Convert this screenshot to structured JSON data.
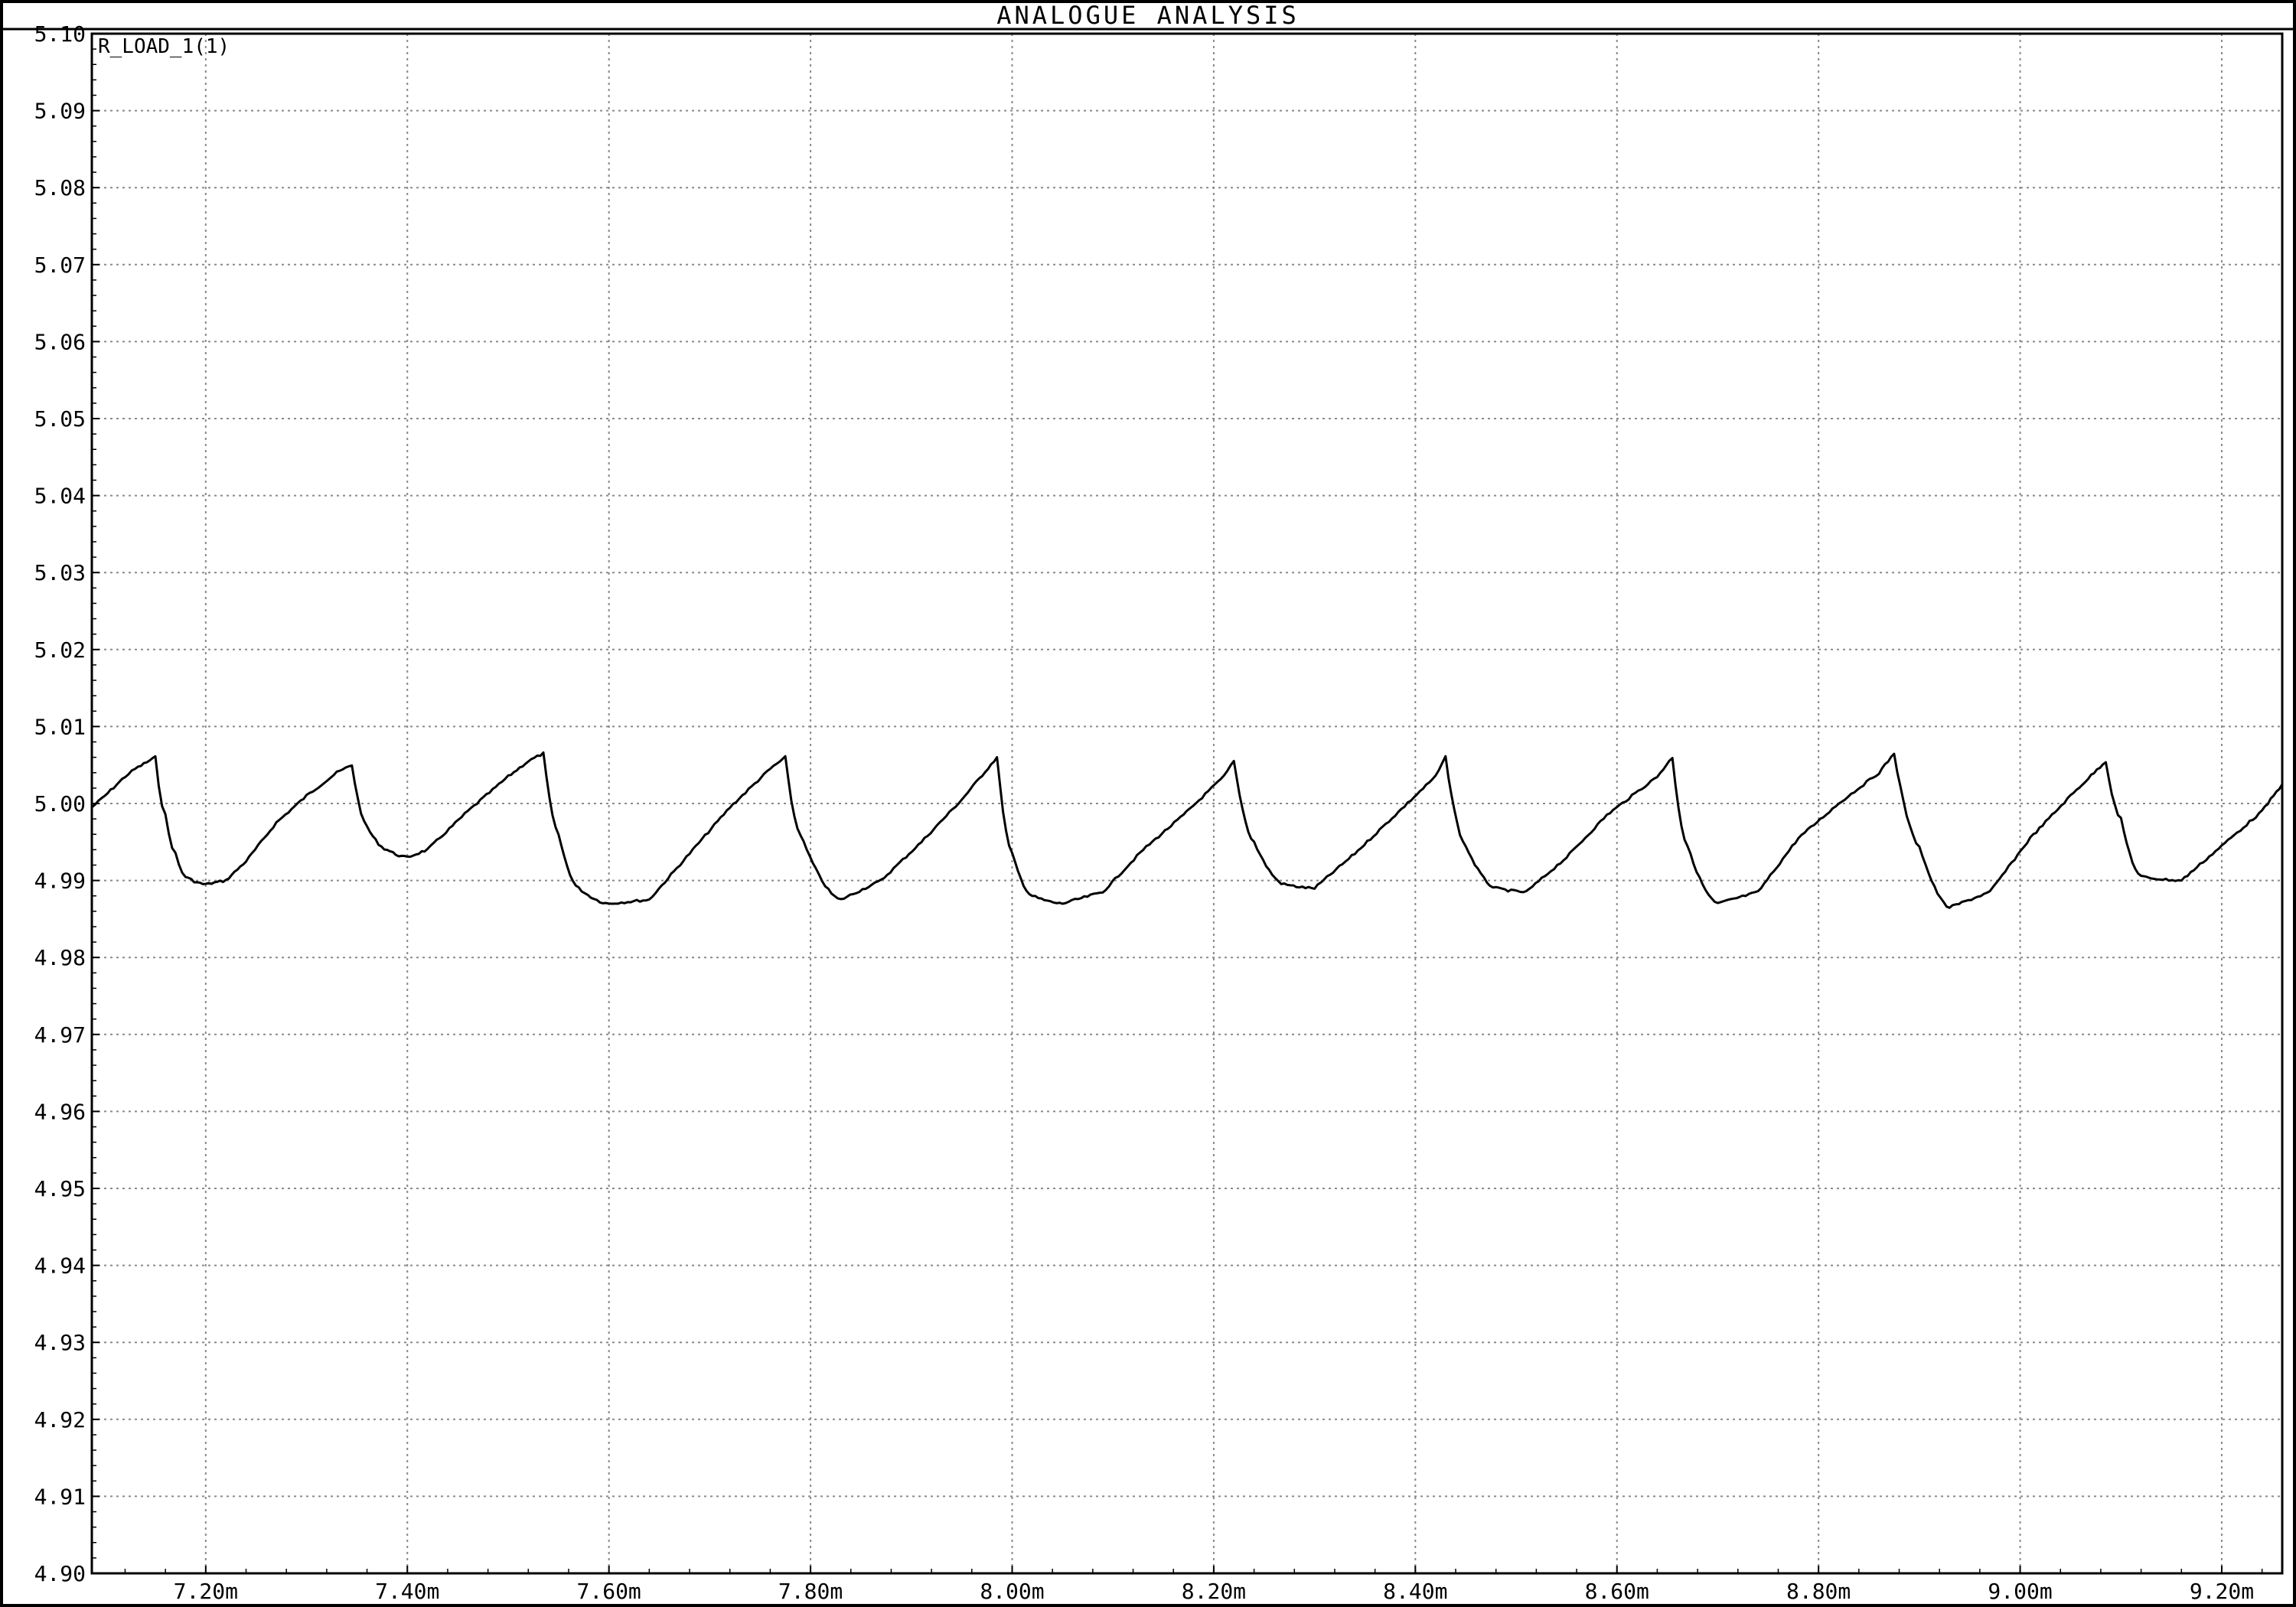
{
  "window": {
    "title": "ANALOGUE ANALYSIS"
  },
  "chart_data": {
    "type": "line",
    "title": "ANALOGUE ANALYSIS",
    "xlabel": "",
    "ylabel": "",
    "xlim": [
      7.087,
      9.26
    ],
    "ylim": [
      4.9,
      5.1
    ],
    "grid": true,
    "x_ticks": [
      7.2,
      7.4,
      7.6,
      7.8,
      8.0,
      8.2,
      8.4,
      8.6,
      8.8,
      9.0,
      9.2
    ],
    "x_tick_labels": [
      "7.20m",
      "7.40m",
      "7.60m",
      "7.80m",
      "8.00m",
      "8.20m",
      "8.40m",
      "8.60m",
      "8.80m",
      "9.00m",
      "9.20m"
    ],
    "y_ticks": [
      4.9,
      4.91,
      4.92,
      4.93,
      4.94,
      4.95,
      4.96,
      4.97,
      4.98,
      4.99,
      5.0,
      5.01,
      5.02,
      5.03,
      5.04,
      5.05,
      5.06,
      5.07,
      5.08,
      5.09,
      5.1
    ],
    "y_tick_labels": [
      "4.90",
      "4.91",
      "4.92",
      "4.93",
      "4.94",
      "4.95",
      "4.96",
      "4.97",
      "4.98",
      "4.99",
      "5.00",
      "5.01",
      "5.02",
      "5.03",
      "5.04",
      "5.05",
      "5.06",
      "5.07",
      "5.08",
      "5.09",
      "5.10"
    ],
    "series": [
      {
        "name": "R_LOAD_1(1)",
        "color": "#000000",
        "x": [
          7.087,
          7.1,
          7.12,
          7.13,
          7.15,
          7.16,
          7.17,
          7.18,
          7.2,
          7.22,
          7.24,
          7.27,
          7.3,
          7.33,
          7.345,
          7.36,
          7.38,
          7.4,
          7.42,
          7.46,
          7.5,
          7.52,
          7.535,
          7.55,
          7.57,
          7.6,
          7.64,
          7.68,
          7.72,
          7.76,
          7.775,
          7.79,
          7.83,
          7.87,
          7.91,
          7.95,
          7.985,
          8.0,
          8.02,
          8.05,
          8.09,
          8.13,
          8.17,
          8.21,
          8.22,
          8.24,
          8.27,
          8.3,
          8.34,
          8.38,
          8.42,
          8.43,
          8.45,
          8.48,
          8.51,
          8.55,
          8.59,
          8.64,
          8.655,
          8.67,
          8.7,
          8.74,
          8.78,
          8.82,
          8.86,
          8.875,
          8.9,
          8.93,
          8.97,
          9.01,
          9.05,
          9.085,
          9.1,
          9.12,
          9.16,
          9.2,
          9.24,
          9.26
        ],
        "values": [
          4.9995,
          5.001,
          5.0035,
          5.0045,
          5.006,
          4.9985,
          4.9935,
          4.9905,
          4.9895,
          4.99,
          4.9925,
          4.9975,
          5.001,
          5.004,
          5.005,
          4.997,
          4.994,
          4.993,
          4.994,
          4.999,
          5.0035,
          5.0055,
          5.0065,
          4.996,
          4.989,
          4.987,
          4.9875,
          4.9935,
          4.9995,
          5.0045,
          5.006,
          4.996,
          4.9875,
          4.99,
          4.995,
          5.0005,
          5.006,
          4.9935,
          4.988,
          4.987,
          4.9885,
          4.994,
          4.9985,
          5.0035,
          5.0055,
          4.995,
          4.9895,
          4.989,
          4.9935,
          4.9985,
          5.0035,
          5.006,
          4.9945,
          4.989,
          4.9885,
          4.993,
          4.9985,
          5.0035,
          5.006,
          4.9945,
          4.987,
          4.9885,
          4.9955,
          5.0,
          5.004,
          5.0065,
          4.9945,
          4.9865,
          4.9885,
          4.9955,
          5.001,
          5.0055,
          4.998,
          4.9905,
          4.99,
          4.9945,
          4.999,
          5.0025
        ]
      }
    ]
  }
}
